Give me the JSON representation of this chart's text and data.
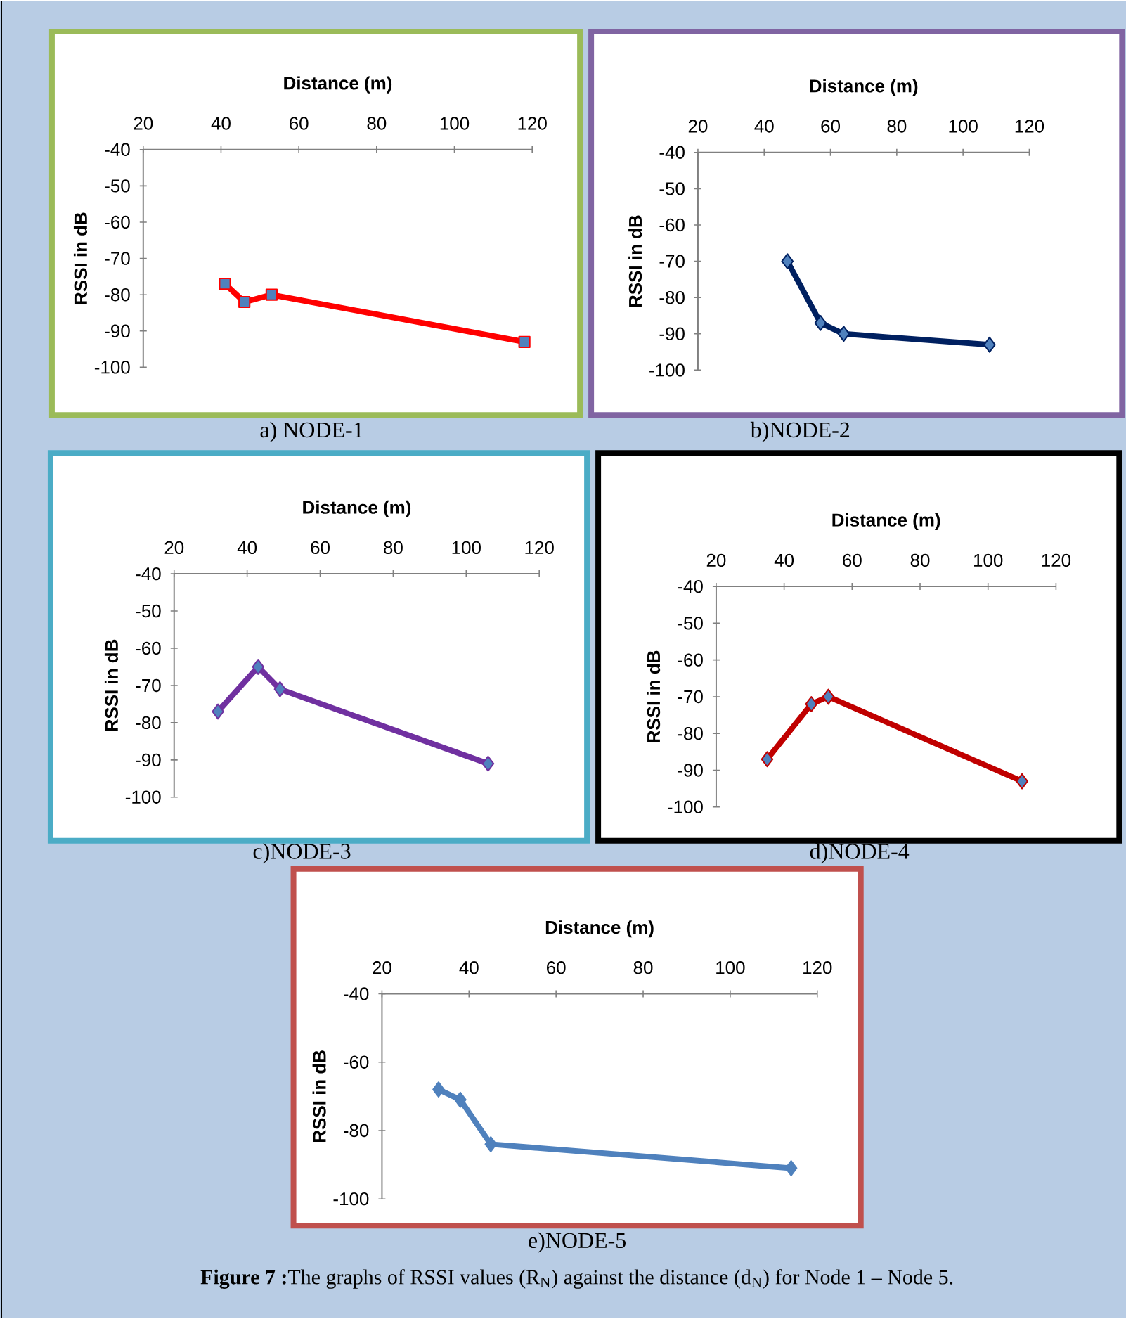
{
  "chart_data": [
    {
      "type": "line",
      "xlabel": "Distance (m)",
      "ylabel": "RSSI in dB",
      "x": [
        41,
        46,
        53,
        118
      ],
      "values": [
        -77,
        -82,
        -80,
        -93
      ],
      "color": "#ff0000",
      "marker": "square",
      "xlim": [
        20,
        120
      ],
      "ylim": [
        -100,
        -40
      ],
      "xticks": [
        20,
        40,
        60,
        80,
        100,
        120
      ],
      "yticks": [
        -40,
        -50,
        -60,
        -70,
        -80,
        -90,
        -100
      ],
      "annotations": [
        "a)    NODE-1"
      ]
    },
    {
      "type": "line",
      "xlabel": "Distance (m)",
      "ylabel": "RSSI in dB",
      "x": [
        47,
        57,
        64,
        108
      ],
      "values": [
        -70,
        -87,
        -90,
        -93
      ],
      "color": "#002060",
      "marker": "diamond",
      "xlim": [
        20,
        120
      ],
      "ylim": [
        -100,
        -40
      ],
      "xticks": [
        20,
        40,
        60,
        80,
        100,
        120
      ],
      "yticks": [
        -40,
        -50,
        -60,
        -70,
        -80,
        -90,
        -100
      ],
      "annotations": [
        "b)NODE-2"
      ]
    },
    {
      "type": "line",
      "xlabel": "Distance (m)",
      "ylabel": "RSSI in dB",
      "x": [
        32,
        43,
        49,
        106
      ],
      "values": [
        -77,
        -65,
        -71,
        -91
      ],
      "color": "#7030a0",
      "marker": "diamond",
      "xlim": [
        20,
        120
      ],
      "ylim": [
        -100,
        -40
      ],
      "xticks": [
        20,
        40,
        60,
        80,
        100,
        120
      ],
      "yticks": [
        -40,
        -50,
        -60,
        -70,
        -80,
        -90,
        -100
      ],
      "annotations": [
        "c)NODE-3"
      ]
    },
    {
      "type": "line",
      "xlabel": "Distance (m)",
      "ylabel": "RSSI in dB",
      "x": [
        35,
        48,
        53,
        110
      ],
      "values": [
        -87,
        -72,
        -70,
        -93
      ],
      "color": "#c00000",
      "marker": "diamond",
      "xlim": [
        20,
        120
      ],
      "ylim": [
        -100,
        -40
      ],
      "xticks": [
        20,
        40,
        60,
        80,
        100,
        120
      ],
      "yticks": [
        -40,
        -50,
        -60,
        -70,
        -80,
        -90,
        -100
      ],
      "annotations": [
        "d)NODE-4"
      ]
    },
    {
      "type": "line",
      "xlabel": "Distance (m)",
      "ylabel": "RSSI in dB",
      "x": [
        33,
        38,
        45,
        114
      ],
      "values": [
        -68,
        -71,
        -84,
        -91
      ],
      "color": "#4f81bd",
      "marker": "diamond",
      "xlim": [
        20,
        120
      ],
      "ylim": [
        -100,
        -40
      ],
      "xticks": [
        20,
        40,
        60,
        80,
        100,
        120
      ],
      "yticks": [
        -40,
        -60,
        -80,
        -100
      ],
      "annotations": [
        "e)NODE-5",
        "**Figure 7 :**The graphs of RSSI values (R$_{N}$) against the distance (d$_{N}$) for Node 1 – Node 5."
      ]
    }
  ]
}
